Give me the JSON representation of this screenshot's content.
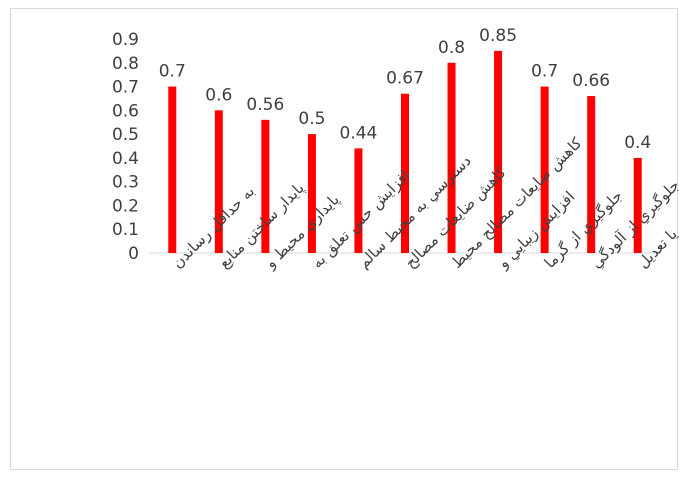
{
  "chart_data": {
    "type": "bar",
    "categories": [
      "به حداقل رساندن",
      "پايدار ساختن منابع",
      "پايداري محيط و",
      "افزايش حس تعلق به",
      "دسترسي به محيط سالم",
      "كاهش ضايعات مصالح",
      "كاهش ضايعات مصالح محيط",
      "افزايش زيبايي و",
      "جلوگيري از گرما",
      "جلوگيري از آلودگي",
      "تقليل يا تعديل"
    ],
    "values": [
      0.7,
      0.6,
      0.56,
      0.5,
      0.44,
      0.67,
      0.8,
      0.85,
      0.7,
      0.66,
      0.4
    ],
    "data_labels": [
      "0.7",
      "0.6",
      "0.56",
      "0.5",
      "0.44",
      "0.67",
      "0.8",
      "0.85",
      "0.7",
      "0.66",
      "0.4"
    ],
    "y_ticks": [
      "0",
      "0.1",
      "0.2",
      "0.3",
      "0.4",
      "0.5",
      "0.6",
      "0.7",
      "0.8",
      "0.9"
    ],
    "ylim": [
      0,
      0.9
    ],
    "title": "",
    "xlabel": "",
    "ylabel": "",
    "grid": false,
    "legend": "none",
    "bar_color": "#ff0000",
    "axis_color": "#d9d9d9",
    "text_color": "#404040"
  }
}
